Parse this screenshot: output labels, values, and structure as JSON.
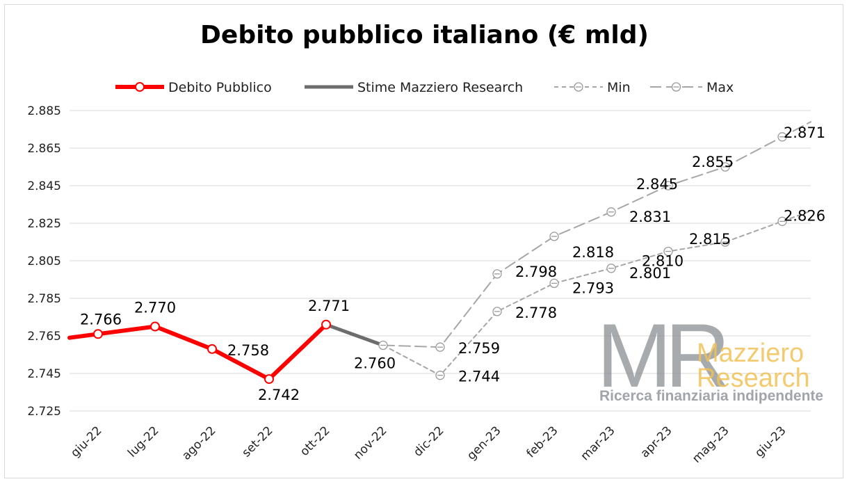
{
  "chart_data": {
    "type": "line",
    "title": "Debito pubblico italiano (€ mld)",
    "categories": [
      "giu-22",
      "lug-22",
      "ago-22",
      "set-22",
      "ott-22",
      "nov-22",
      "dic-22",
      "gen-23",
      "feb-23",
      "mar-23",
      "apr-23",
      "mag-23",
      "giu-23"
    ],
    "ylim": [
      2.725,
      2.885
    ],
    "yticks": [
      "2.885",
      "2.865",
      "2.845",
      "2.825",
      "2.805",
      "2.785",
      "2.765",
      "2.745",
      "2.725"
    ],
    "ytick_values": [
      2.885,
      2.865,
      2.845,
      2.825,
      2.805,
      2.785,
      2.765,
      2.745,
      2.725
    ],
    "grid": true,
    "legend_position": "top-center",
    "series": [
      {
        "name": "Debito Pubblico",
        "color": "#ff0000",
        "style": "solid",
        "marker": "circle",
        "values": [
          2.766,
          2.77,
          2.758,
          2.742,
          2.771,
          null,
          null,
          null,
          null,
          null,
          null,
          null,
          null
        ],
        "labels": [
          "2.766",
          "2.770",
          "2.758",
          "2.742",
          "2.771",
          "",
          "",
          "",
          "",
          "",
          "",
          "",
          ""
        ]
      },
      {
        "name": "Stime Mazziero Research",
        "color": "#6d6d6d",
        "style": "solid",
        "marker": "none",
        "values": [
          null,
          null,
          null,
          null,
          2.771,
          2.76,
          null,
          null,
          null,
          null,
          null,
          null,
          null
        ],
        "labels": [
          "",
          "",
          "",
          "",
          "",
          "2.760",
          "",
          "",
          "",
          "",
          "",
          "",
          ""
        ]
      },
      {
        "name": "Min",
        "color": "#a6a6a6",
        "style": "short-dash",
        "marker": "circle",
        "values": [
          null,
          null,
          null,
          null,
          null,
          2.76,
          2.744,
          2.778,
          2.793,
          2.801,
          2.81,
          2.815,
          2.826
        ],
        "labels": [
          "",
          "",
          "",
          "",
          "",
          "",
          "2.744",
          "2.778",
          "2.793",
          "2.801",
          "2.810",
          "2.815",
          "2.826"
        ]
      },
      {
        "name": "Max",
        "color": "#a6a6a6",
        "style": "long-dash",
        "marker": "circle",
        "values": [
          null,
          null,
          null,
          null,
          null,
          2.76,
          2.759,
          2.798,
          2.818,
          2.831,
          2.845,
          2.855,
          2.871
        ],
        "labels": [
          "",
          "",
          "",
          "",
          "",
          "",
          "2.759",
          "2.798",
          "2.818",
          "2.831",
          "2.845",
          "2.855",
          "2.871"
        ]
      }
    ]
  },
  "watermark": {
    "mark": "MR",
    "name_line1": "Mazziero",
    "name_line2": "Research",
    "tagline": "Ricerca finanziaria indipendente"
  }
}
